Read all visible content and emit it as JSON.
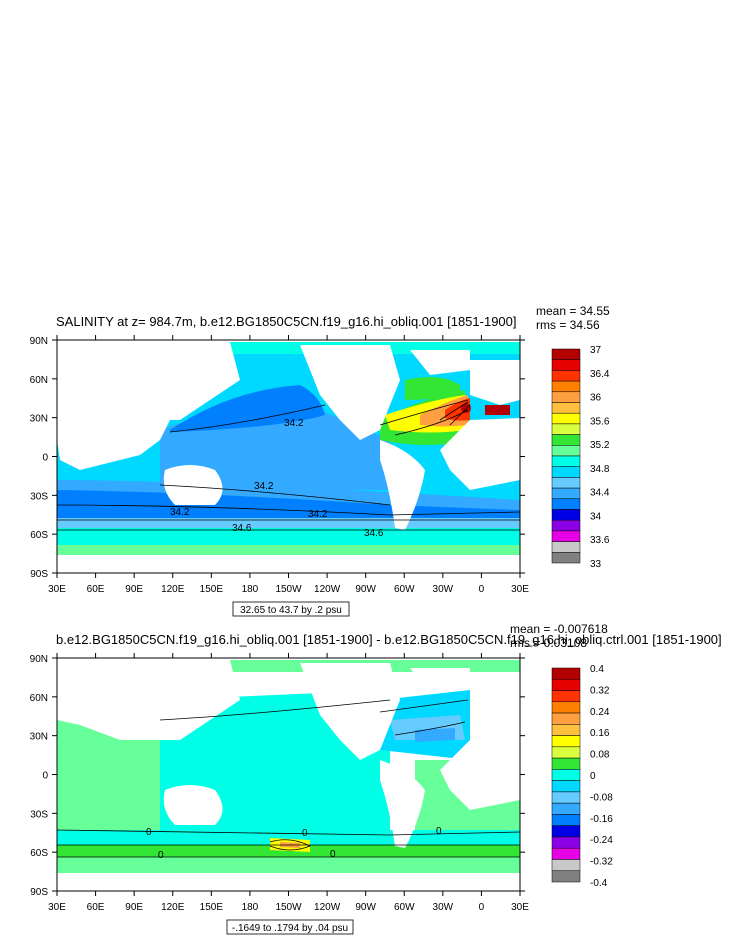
{
  "panels": [
    {
      "title": "SALINITY at z= 984.7m, b.e12.BG1850C5CN.f19_g16.hi_obliq.001 [1851-1900]",
      "mean": "mean = 34.55",
      "rms": "rms = 34.56",
      "range_label": "32.65 to 43.7 by .2 psu",
      "lat_ticks": [
        "90N",
        "60N",
        "30N",
        "0",
        "30S",
        "60S",
        "90S"
      ],
      "lon_ticks": [
        "30E",
        "60E",
        "90E",
        "120E",
        "150E",
        "180",
        "150W",
        "120W",
        "90W",
        "60W",
        "30W",
        "0",
        "30E"
      ],
      "colorbar": {
        "labels": [
          "37",
          "36.4",
          "36",
          "35.6",
          "35.2",
          "34.8",
          "34.4",
          "34",
          "33.6",
          "33"
        ],
        "colors": [
          "#b30000",
          "#e60000",
          "#ff3300",
          "#ff8000",
          "#ffa040",
          "#ffc040",
          "#ffff00",
          "#d9ff40",
          "#33e633",
          "#66ff99",
          "#00ffe6",
          "#00d9ff",
          "#66ccff",
          "#33aaff",
          "#0080ff",
          "#0000e6",
          "#8c00e6",
          "#e600e6",
          "#c8c8c8",
          "#808080"
        ]
      },
      "contour_labels": [
        "34.2",
        "34.2",
        "34.2",
        "34.2",
        "34.6",
        "34.6"
      ]
    },
    {
      "title": "b.e12.BG1850C5CN.f19_g16.hi_obliq.001 [1851-1900] - b.e12.BG1850C5CN.f19_g16.hi_obliq.ctrl.001 [1851-1900]",
      "mean": "mean = -0.007618",
      "rms": "rms = 0.03108",
      "range_label": "-.1649 to .1794 by .04 psu",
      "lat_ticks": [
        "90N",
        "60N",
        "30N",
        "0",
        "30S",
        "60S",
        "90S"
      ],
      "lon_ticks": [
        "30E",
        "60E",
        "90E",
        "120E",
        "150E",
        "180",
        "150W",
        "120W",
        "90W",
        "60W",
        "30W",
        "0",
        "30E"
      ],
      "colorbar": {
        "labels": [
          "0.4",
          "0.32",
          "0.24",
          "0.16",
          "0.08",
          "0",
          "-0.08",
          "-0.16",
          "-0.24",
          "-0.32",
          "-0.4"
        ],
        "colors": [
          "#b30000",
          "#e60000",
          "#ff3300",
          "#ff8000",
          "#ffa040",
          "#ffc040",
          "#ffff00",
          "#d9ff40",
          "#33e633",
          "#00ffe6",
          "#00d9ff",
          "#66ccff",
          "#33aaff",
          "#0080ff",
          "#0000e6",
          "#8c00e6",
          "#e600e6",
          "#c8c8c8",
          "#808080"
        ]
      },
      "contour_labels": [
        "0",
        "0",
        "0",
        "0",
        "0"
      ]
    }
  ]
}
